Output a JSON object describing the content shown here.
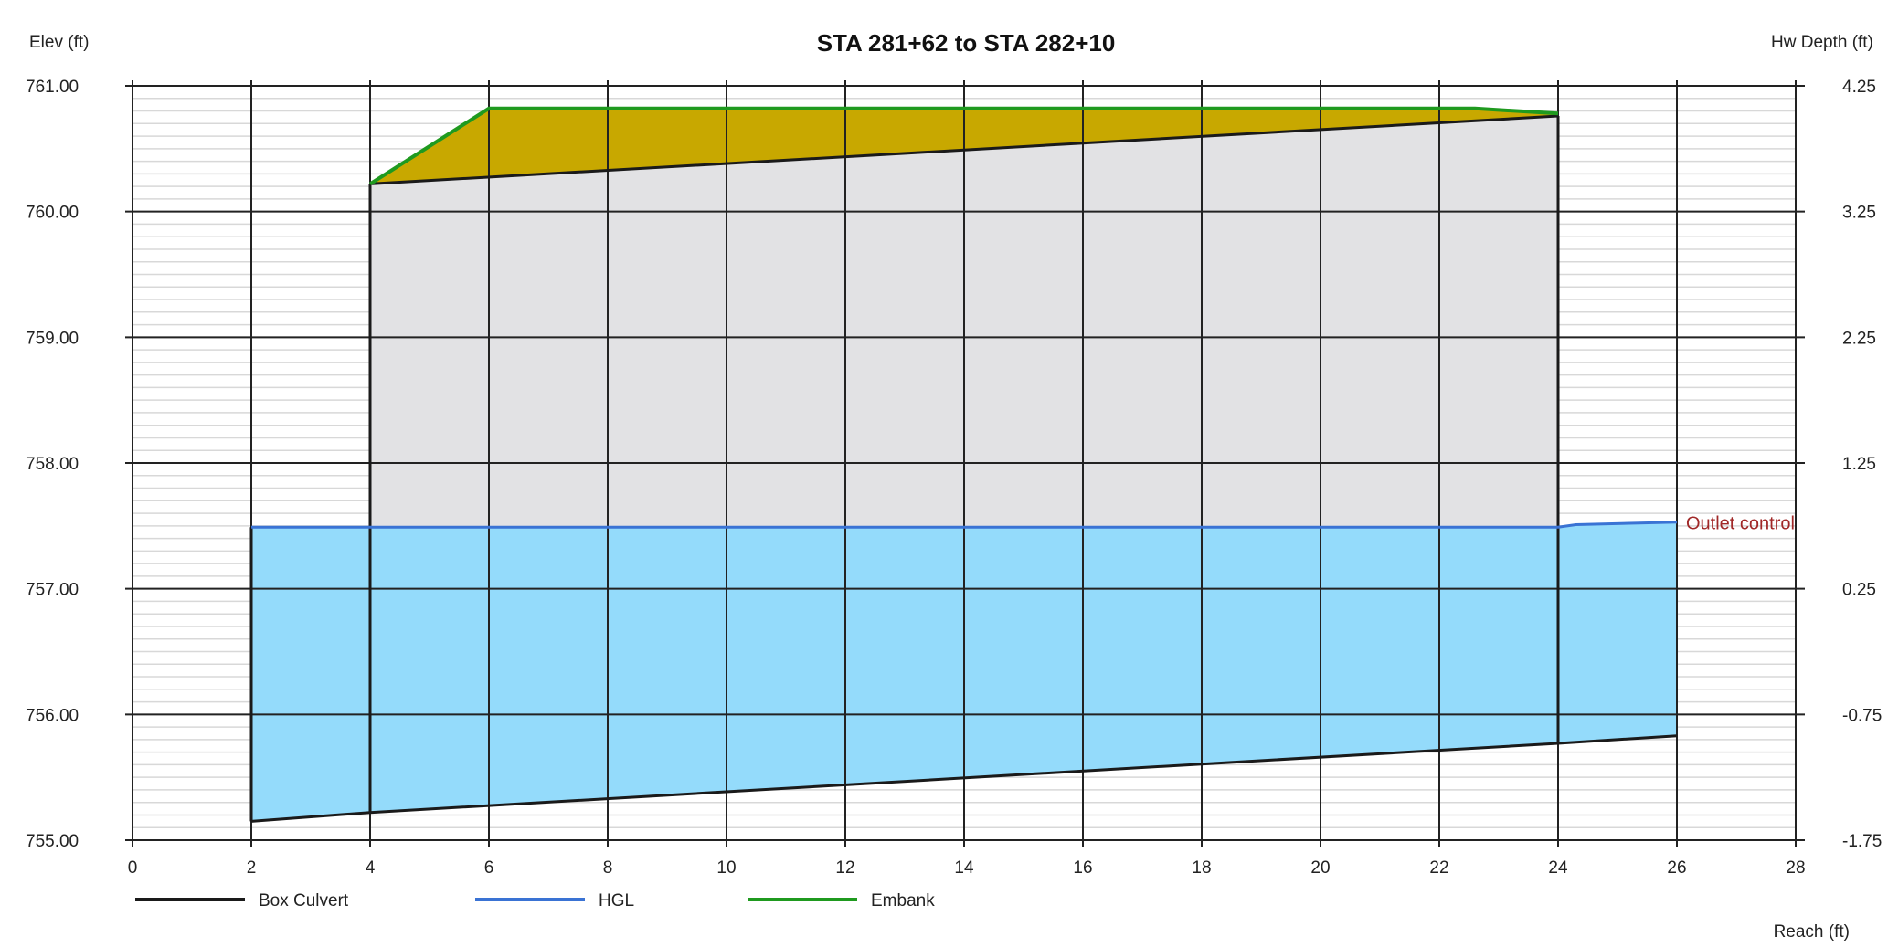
{
  "chart_data": {
    "type": "line",
    "title": "STA 281+62 to STA 282+10",
    "ylabel": "Elev (ft)",
    "y2label": "Hw Depth (ft)",
    "xlabel": "Reach (ft)",
    "xlim": [
      0,
      28
    ],
    "ylim": [
      755,
      761
    ],
    "x_ticks": [
      "0",
      "2",
      "4",
      "6",
      "8",
      "10",
      "12",
      "14",
      "16",
      "18",
      "20",
      "22",
      "24",
      "26",
      "28"
    ],
    "y_ticks": [
      "755.00",
      "756.00",
      "757.00",
      "758.00",
      "759.00",
      "760.00",
      "761.00"
    ],
    "y2_ticks": [
      "-1.75",
      "-0.75",
      "0.25",
      "1.25",
      "2.25",
      "3.25",
      "4.25"
    ],
    "grid": true,
    "legend_position": "bottom",
    "series": [
      {
        "name": "Box Culvert",
        "color": "#1a1a1a",
        "invert": [
          [
            2,
            755.15
          ],
          [
            4,
            755.22
          ],
          [
            24,
            755.77
          ],
          [
            26,
            755.83
          ]
        ],
        "crown": [
          [
            4,
            760.22
          ],
          [
            24,
            760.76
          ]
        ],
        "walls": [
          [
            2,
            755.15,
            757.49
          ],
          [
            4,
            755.22,
            760.22
          ],
          [
            24,
            755.77,
            760.76
          ]
        ]
      },
      {
        "name": "HGL",
        "color": "#3a73d4",
        "points": [
          [
            2,
            757.49
          ],
          [
            24,
            757.49
          ],
          [
            24.3,
            757.51
          ],
          [
            26,
            757.53
          ]
        ]
      },
      {
        "name": "Embank",
        "color": "#1f9a1f",
        "points": [
          [
            4,
            760.22
          ],
          [
            6,
            760.82
          ],
          [
            22.6,
            760.82
          ],
          [
            24,
            760.78
          ]
        ]
      }
    ],
    "fills": {
      "water": "#94dbfb",
      "culvert": "#e2e2e4",
      "embankment": "#c8a800"
    },
    "annotations": [
      {
        "text": "Outlet control",
        "color": "#a02828",
        "x": 26,
        "y": 757.53
      }
    ]
  }
}
